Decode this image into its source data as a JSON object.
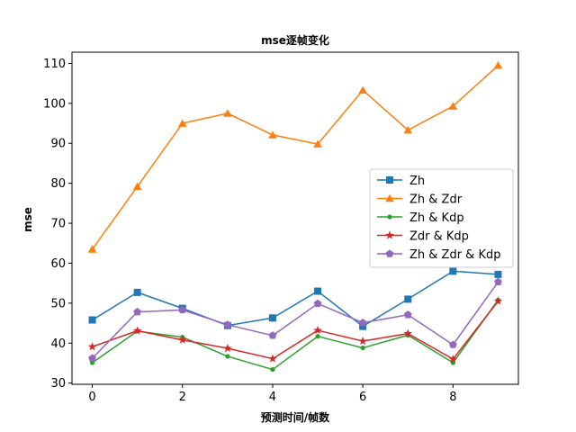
{
  "chart_data": {
    "type": "line",
    "title": "mse逐帧变化",
    "xlabel": "预测时间/帧数",
    "ylabel": "mse",
    "x": [
      0,
      1,
      2,
      3,
      4,
      5,
      6,
      7,
      8,
      9
    ],
    "xticks": [
      0,
      2,
      4,
      6,
      8
    ],
    "yticks": [
      30,
      40,
      50,
      60,
      70,
      80,
      90,
      100,
      110
    ],
    "xlim": [
      -0.45,
      9.45
    ],
    "ylim": [
      29.7,
      112.8
    ],
    "grid": false,
    "legend_position": "center-right",
    "series": [
      {
        "name": "Zh",
        "color": "#1f77b4",
        "marker": "square",
        "values": [
          45.8,
          52.7,
          48.7,
          44.4,
          46.3,
          53.0,
          44.2,
          51.0,
          58.0,
          57.2
        ]
      },
      {
        "name": "Zh & Zdr",
        "color": "#ff7f0e",
        "marker": "triangle",
        "values": [
          63.5,
          79.2,
          95.0,
          97.5,
          92.1,
          89.8,
          103.3,
          93.3,
          99.3,
          109.5
        ]
      },
      {
        "name": "Zh & Kdp",
        "color": "#2ca02c",
        "marker": "dot",
        "values": [
          35.1,
          43.0,
          41.5,
          36.7,
          33.4,
          41.7,
          38.8,
          42.0,
          35.1,
          50.8
        ]
      },
      {
        "name": "Zdr & Kdp",
        "color": "#d62728",
        "marker": "star",
        "values": [
          39.1,
          43.1,
          40.8,
          38.7,
          36.1,
          43.2,
          40.5,
          42.4,
          36.0,
          50.5
        ]
      },
      {
        "name": "Zh & Zdr & Kdp",
        "color": "#9467bd",
        "marker": "pentagon",
        "values": [
          36.2,
          47.8,
          48.3,
          44.6,
          41.9,
          49.9,
          45.1,
          47.1,
          39.6,
          55.3
        ]
      }
    ]
  }
}
